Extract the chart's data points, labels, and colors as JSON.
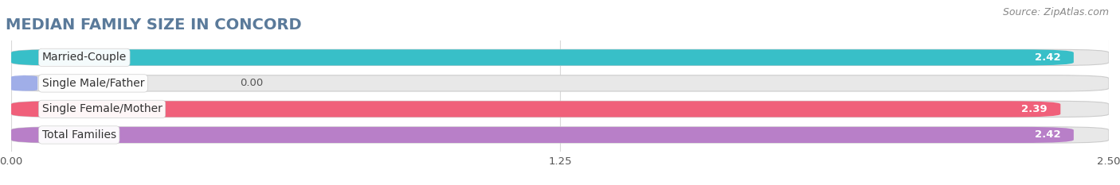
{
  "title": "MEDIAN FAMILY SIZE IN CONCORD",
  "source": "Source: ZipAtlas.com",
  "categories": [
    "Married-Couple",
    "Single Male/Father",
    "Single Female/Mother",
    "Total Families"
  ],
  "values": [
    2.42,
    0.0,
    2.39,
    2.42
  ],
  "bar_colors": [
    "#38bfc8",
    "#a0aee8",
    "#f0607a",
    "#b87fc8"
  ],
  "xlim": [
    0,
    2.5
  ],
  "xticks": [
    0.0,
    1.25,
    2.5
  ],
  "xtick_labels": [
    "0.00",
    "1.25",
    "2.50"
  ],
  "background_color": "#ffffff",
  "bar_bg_color": "#e8e8e8",
  "grid_color": "#d8d8d8",
  "title_fontsize": 14,
  "source_fontsize": 9,
  "label_fontsize": 10,
  "value_fontsize": 9.5
}
